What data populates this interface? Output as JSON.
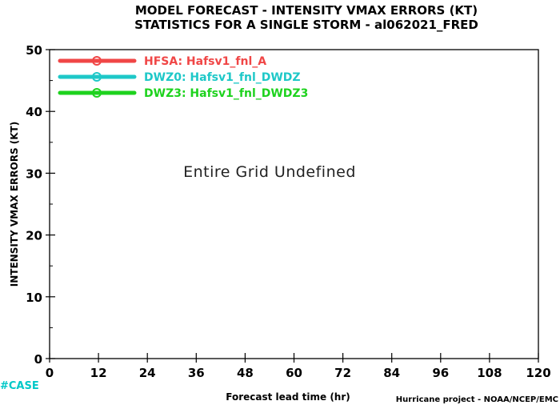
{
  "chart_data": {
    "type": "line",
    "title": "MODEL FORECAST - INTENSITY VMAX ERRORS (KT)",
    "subtitle": "STATISTICS FOR A SINGLE STORM - al062021_FRED",
    "xlabel": "Forecast lead time (hr)",
    "ylabel": "INTENSITY VMAX ERRORS (KT)",
    "xlim": [
      0,
      120
    ],
    "ylim": [
      0,
      50
    ],
    "xticks": [
      0,
      12,
      24,
      36,
      48,
      60,
      72,
      84,
      96,
      108,
      120
    ],
    "yticks": [
      0,
      10,
      20,
      30,
      40,
      50
    ],
    "grid": false,
    "legend_position": "top-left",
    "series": [
      {
        "name": "HFSA: Hafsv1_fnl_A",
        "color": "#f04646",
        "values": []
      },
      {
        "name": "DWZ0: Hafsv1_fnl_DWDZ",
        "color": "#1ec8c8",
        "values": []
      },
      {
        "name": "DWZ3: Hafsv1_fnl_DWDZ3",
        "color": "#1ed21e",
        "values": []
      }
    ],
    "annotation": "Entire Grid Undefined"
  },
  "footer": {
    "case_label": "#CASE",
    "credit": "Hurricane project - NOAA/NCEP/EMC"
  }
}
